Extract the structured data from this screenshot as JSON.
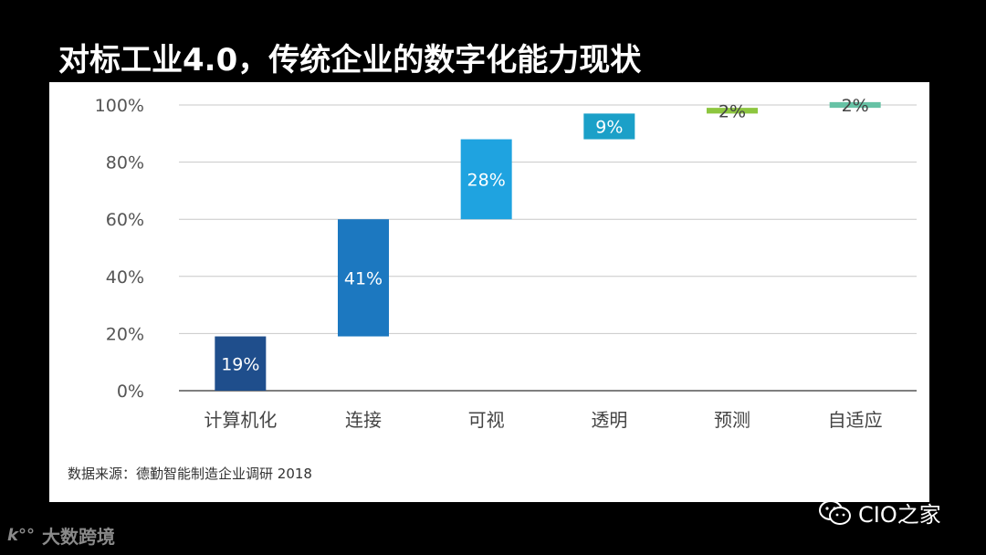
{
  "title": "对标工业4.0，传统企业的数字化能力现状",
  "source": "数据来源：德勤智能制造企业调研 2018",
  "watermarks": {
    "left_logo": "k°°",
    "left_text": "大数跨境",
    "right_text": "CIO之家",
    "right_icon": "wechat-icon"
  },
  "chart_data": {
    "type": "bar",
    "subtype": "waterfall",
    "categories": [
      "计算机化",
      "连接",
      "可视",
      "透明",
      "预测",
      "自适应"
    ],
    "values": [
      19,
      41,
      28,
      9,
      2,
      2
    ],
    "bases": [
      0,
      19,
      60,
      88,
      97,
      99
    ],
    "data_labels": [
      "19%",
      "41%",
      "28%",
      "9%",
      "2%",
      "2%"
    ],
    "colors": [
      "#1F4E8C",
      "#1C78C0",
      "#1FA3E0",
      "#1BA0C8",
      "#8DC63F",
      "#66C2A5"
    ],
    "label_colors": [
      "#ffffff",
      "#ffffff",
      "#ffffff",
      "#ffffff",
      "#444444",
      "#444444"
    ],
    "ylim": [
      0,
      100
    ],
    "yticks": [
      0,
      20,
      40,
      60,
      80,
      100
    ],
    "ytick_labels": [
      "0%",
      "20%",
      "40%",
      "60%",
      "80%",
      "100%"
    ],
    "grid": true,
    "legend": "none"
  }
}
